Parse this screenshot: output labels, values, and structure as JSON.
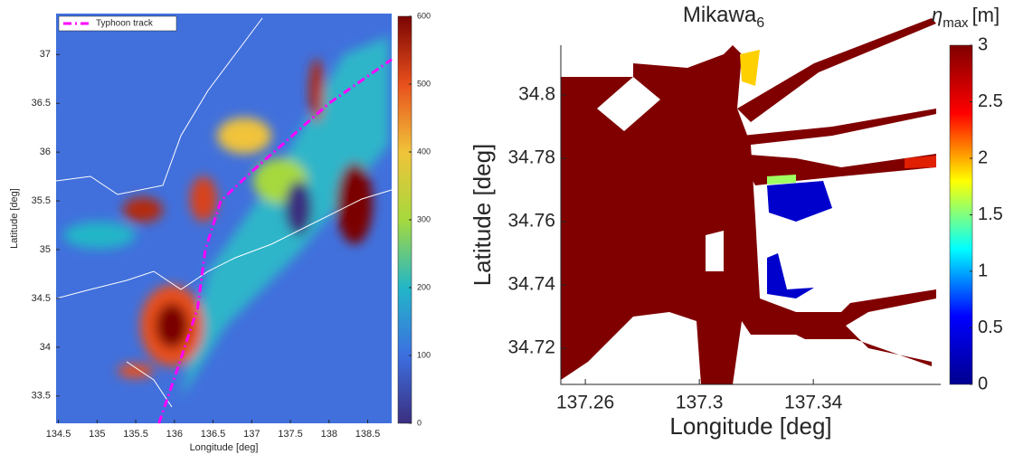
{
  "chart_data": [
    {
      "type": "heatmap",
      "xlabel": "Longitude [deg]",
      "ylabel": "Latitude [deg]",
      "xlim": [
        134.47,
        138.81
      ],
      "ylim": [
        33.22,
        37.42
      ],
      "xticks": [
        134.5,
        135,
        135.5,
        136,
        136.5,
        137,
        137.5,
        138,
        138.5
      ],
      "yticks": [
        33.5,
        34,
        34.5,
        35,
        35.5,
        36,
        36.5,
        37
      ],
      "colormap": "turbo",
      "clim": [
        0,
        600
      ],
      "cticks": [
        0,
        100,
        200,
        300,
        400,
        500,
        600
      ],
      "legend": "upper left",
      "series": [
        {
          "name": "Typhoon track",
          "color": "#ff00ff",
          "x": [
            135.8,
            136.05,
            136.3,
            136.4,
            136.6,
            137.0,
            137.5,
            138.0,
            138.81
          ],
          "values": [
            33.22,
            33.8,
            34.4,
            35.0,
            35.5,
            35.8,
            36.15,
            36.5,
            36.95
          ]
        }
      ]
    },
    {
      "type": "heatmap",
      "title": "Mikawa",
      "title_subscript": "6",
      "colorbar_label": "η",
      "colorbar_label_subscript": "max",
      "colorbar_unit": "[m]",
      "xlabel": "Longitude [deg]",
      "ylabel": "Latitude [deg]",
      "xlim": [
        137.2514,
        137.3847
      ],
      "ylim": [
        34.7086,
        34.8157
      ],
      "xticks": [
        137.26,
        137.3,
        137.34
      ],
      "yticks": [
        34.72,
        34.74,
        34.76,
        34.78,
        34.8
      ],
      "colormap": "jet",
      "clim": [
        0,
        3
      ],
      "cticks": [
        0,
        0.5,
        1,
        1.5,
        2,
        2.5,
        3
      ]
    }
  ]
}
